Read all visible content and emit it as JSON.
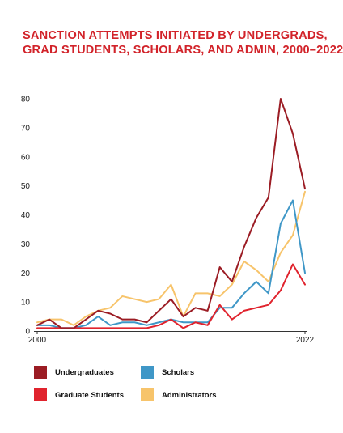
{
  "title_lines": [
    "SANCTION ATTEMPTS INITIATED BY UNDERGRADS,",
    "GRAD STUDENTS, SCHOLARS, AND ADMIN, 2000–2022"
  ],
  "chart_data": {
    "type": "line",
    "title": "SANCTION ATTEMPTS INITIATED BY UNDERGRADS, GRAD STUDENTS, SCHOLARS, AND ADMIN, 2000–2022",
    "xlabel": "",
    "ylabel": "",
    "x": [
      2000,
      2001,
      2002,
      2003,
      2004,
      2005,
      2006,
      2007,
      2008,
      2009,
      2010,
      2011,
      2012,
      2013,
      2014,
      2015,
      2016,
      2017,
      2018,
      2019,
      2020,
      2021,
      2022
    ],
    "x_tick_labels": [
      "2000",
      "2022"
    ],
    "ylim": [
      0,
      80
    ],
    "y_ticks": [
      0,
      10,
      20,
      30,
      40,
      50,
      60,
      70,
      80
    ],
    "grid": false,
    "legend_position": "bottom",
    "series": [
      {
        "name": "Undergraduates",
        "color": "#9b1c24",
        "values": [
          2,
          4,
          1,
          1,
          4,
          7,
          6,
          4,
          4,
          3,
          7,
          11,
          5,
          8,
          7,
          22,
          17,
          29,
          39,
          46,
          80,
          68,
          49
        ]
      },
      {
        "name": "Graduate Students",
        "color": "#e0232d",
        "values": [
          1,
          1,
          1,
          1,
          1,
          1,
          1,
          1,
          1,
          1,
          2,
          4,
          1,
          3,
          2,
          9,
          4,
          7,
          8,
          9,
          14,
          23,
          16
        ]
      },
      {
        "name": "Scholars",
        "color": "#3f97c7",
        "values": [
          2,
          2,
          1,
          1,
          2,
          5,
          2,
          3,
          3,
          2,
          3,
          4,
          3,
          3,
          3,
          8,
          8,
          13,
          17,
          13,
          37,
          45,
          20
        ]
      },
      {
        "name": "Administrators",
        "color": "#f7c46b",
        "values": [
          3,
          4,
          4,
          2,
          5,
          7,
          8,
          12,
          11,
          10,
          11,
          16,
          5,
          13,
          13,
          12,
          16,
          24,
          21,
          17,
          27,
          33,
          48
        ]
      }
    ],
    "legend_order": [
      0,
      2,
      1,
      3
    ]
  }
}
